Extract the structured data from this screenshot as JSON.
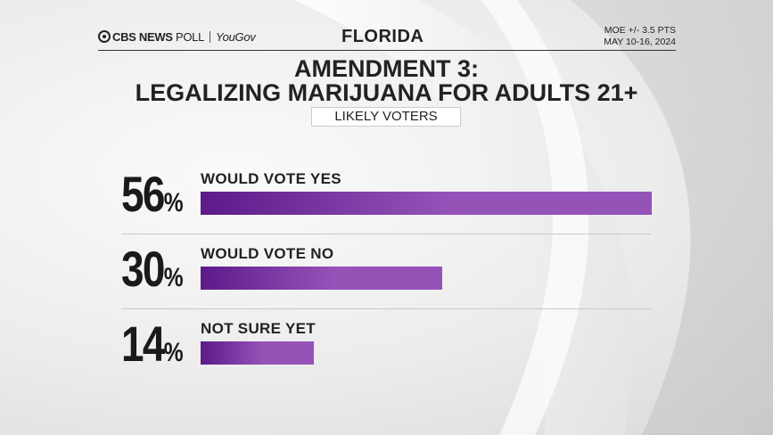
{
  "header": {
    "brand_cbs": "CBS NEWS",
    "brand_poll": "POLL",
    "brand_yougov": "YouGov",
    "state": "FLORIDA",
    "moe_line1": "MOE +/- 3.5 PTS",
    "moe_line2": "MAY 10-16, 2024"
  },
  "colors": {
    "bar_dark": "#5c1a8a",
    "bar_light": "#9553b8"
  },
  "chart_data": {
    "type": "bar",
    "orientation": "horizontal",
    "title": "AMENDMENT 3:",
    "subtitle": "LEGALIZING MARIJUANA FOR ADULTS 21+",
    "population": "LIKELY VOTERS",
    "categories": [
      "WOULD VOTE YES",
      "WOULD VOTE NO",
      "NOT SURE YET"
    ],
    "values": [
      56,
      30,
      14
    ],
    "percent_symbol": "%",
    "xlim": [
      0,
      56
    ]
  }
}
